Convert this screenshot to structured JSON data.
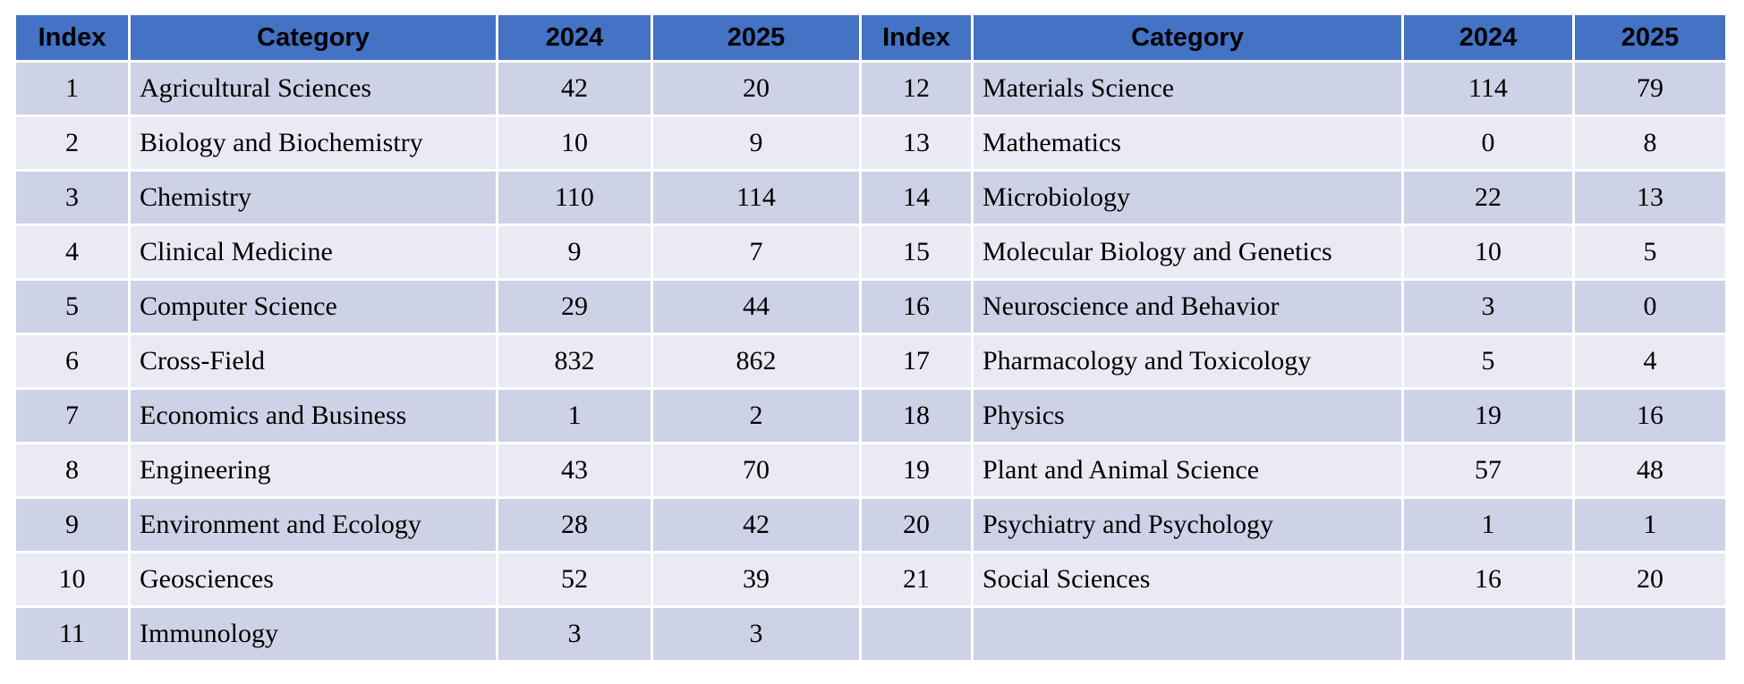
{
  "colors": {
    "header_bg": "#4472C4",
    "band_dark": "#CDD2E6",
    "band_light": "#E9EAF4",
    "highlight_text": "#C00000",
    "header_text": "#000000",
    "body_text": "#000000"
  },
  "table": {
    "headers": [
      "Index",
      "Category",
      "2024",
      "2025",
      "Index",
      "Category",
      "2024",
      "2025"
    ],
    "rows": [
      {
        "cells": [
          "1",
          "Agricultural Sciences",
          "42",
          "20",
          "12",
          "Materials Science",
          "114",
          "79"
        ],
        "left_highlight": false,
        "right_highlight": false
      },
      {
        "cells": [
          "2",
          "Biology and Biochemistry",
          "10",
          "9",
          "13",
          "Mathematics",
          "0",
          "8"
        ],
        "left_highlight": true,
        "right_highlight": false
      },
      {
        "cells": [
          "3",
          "Chemistry",
          "110",
          "114",
          "14",
          "Microbiology",
          "22",
          "13"
        ],
        "left_highlight": false,
        "right_highlight": true
      },
      {
        "cells": [
          "4",
          "Clinical Medicine",
          "9",
          "7",
          "15",
          "Molecular Biology and Genetics",
          "10",
          "5"
        ],
        "left_highlight": false,
        "right_highlight": true
      },
      {
        "cells": [
          "5",
          "Computer Science",
          "29",
          "44",
          "16",
          "Neuroscience and Behavior",
          "3",
          "0"
        ],
        "left_highlight": false,
        "right_highlight": true
      },
      {
        "cells": [
          "6",
          "Cross-Field",
          "832",
          "862",
          "17",
          "Pharmacology and Toxicology",
          "5",
          "4"
        ],
        "left_highlight": false,
        "right_highlight": true
      },
      {
        "cells": [
          "7",
          "Economics and Business",
          "1",
          "2",
          "18",
          "Physics",
          "19",
          "16"
        ],
        "left_highlight": false,
        "right_highlight": false
      },
      {
        "cells": [
          "8",
          "Engineering",
          "43",
          "70",
          "19",
          "Plant and Animal Science",
          "57",
          "48"
        ],
        "left_highlight": false,
        "right_highlight": true
      },
      {
        "cells": [
          "9",
          "Environment and Ecology",
          "28",
          "42",
          "20",
          "Psychiatry and Psychology",
          "1",
          "1"
        ],
        "left_highlight": false,
        "right_highlight": false
      },
      {
        "cells": [
          "10",
          "Geosciences",
          "52",
          "39",
          "21",
          "Social Sciences",
          "16",
          "20"
        ],
        "left_highlight": false,
        "right_highlight": false
      },
      {
        "cells": [
          "11",
          "Immunology",
          "3",
          "3",
          "",
          "",
          "",
          ""
        ],
        "left_highlight": false,
        "right_highlight": false
      }
    ]
  }
}
